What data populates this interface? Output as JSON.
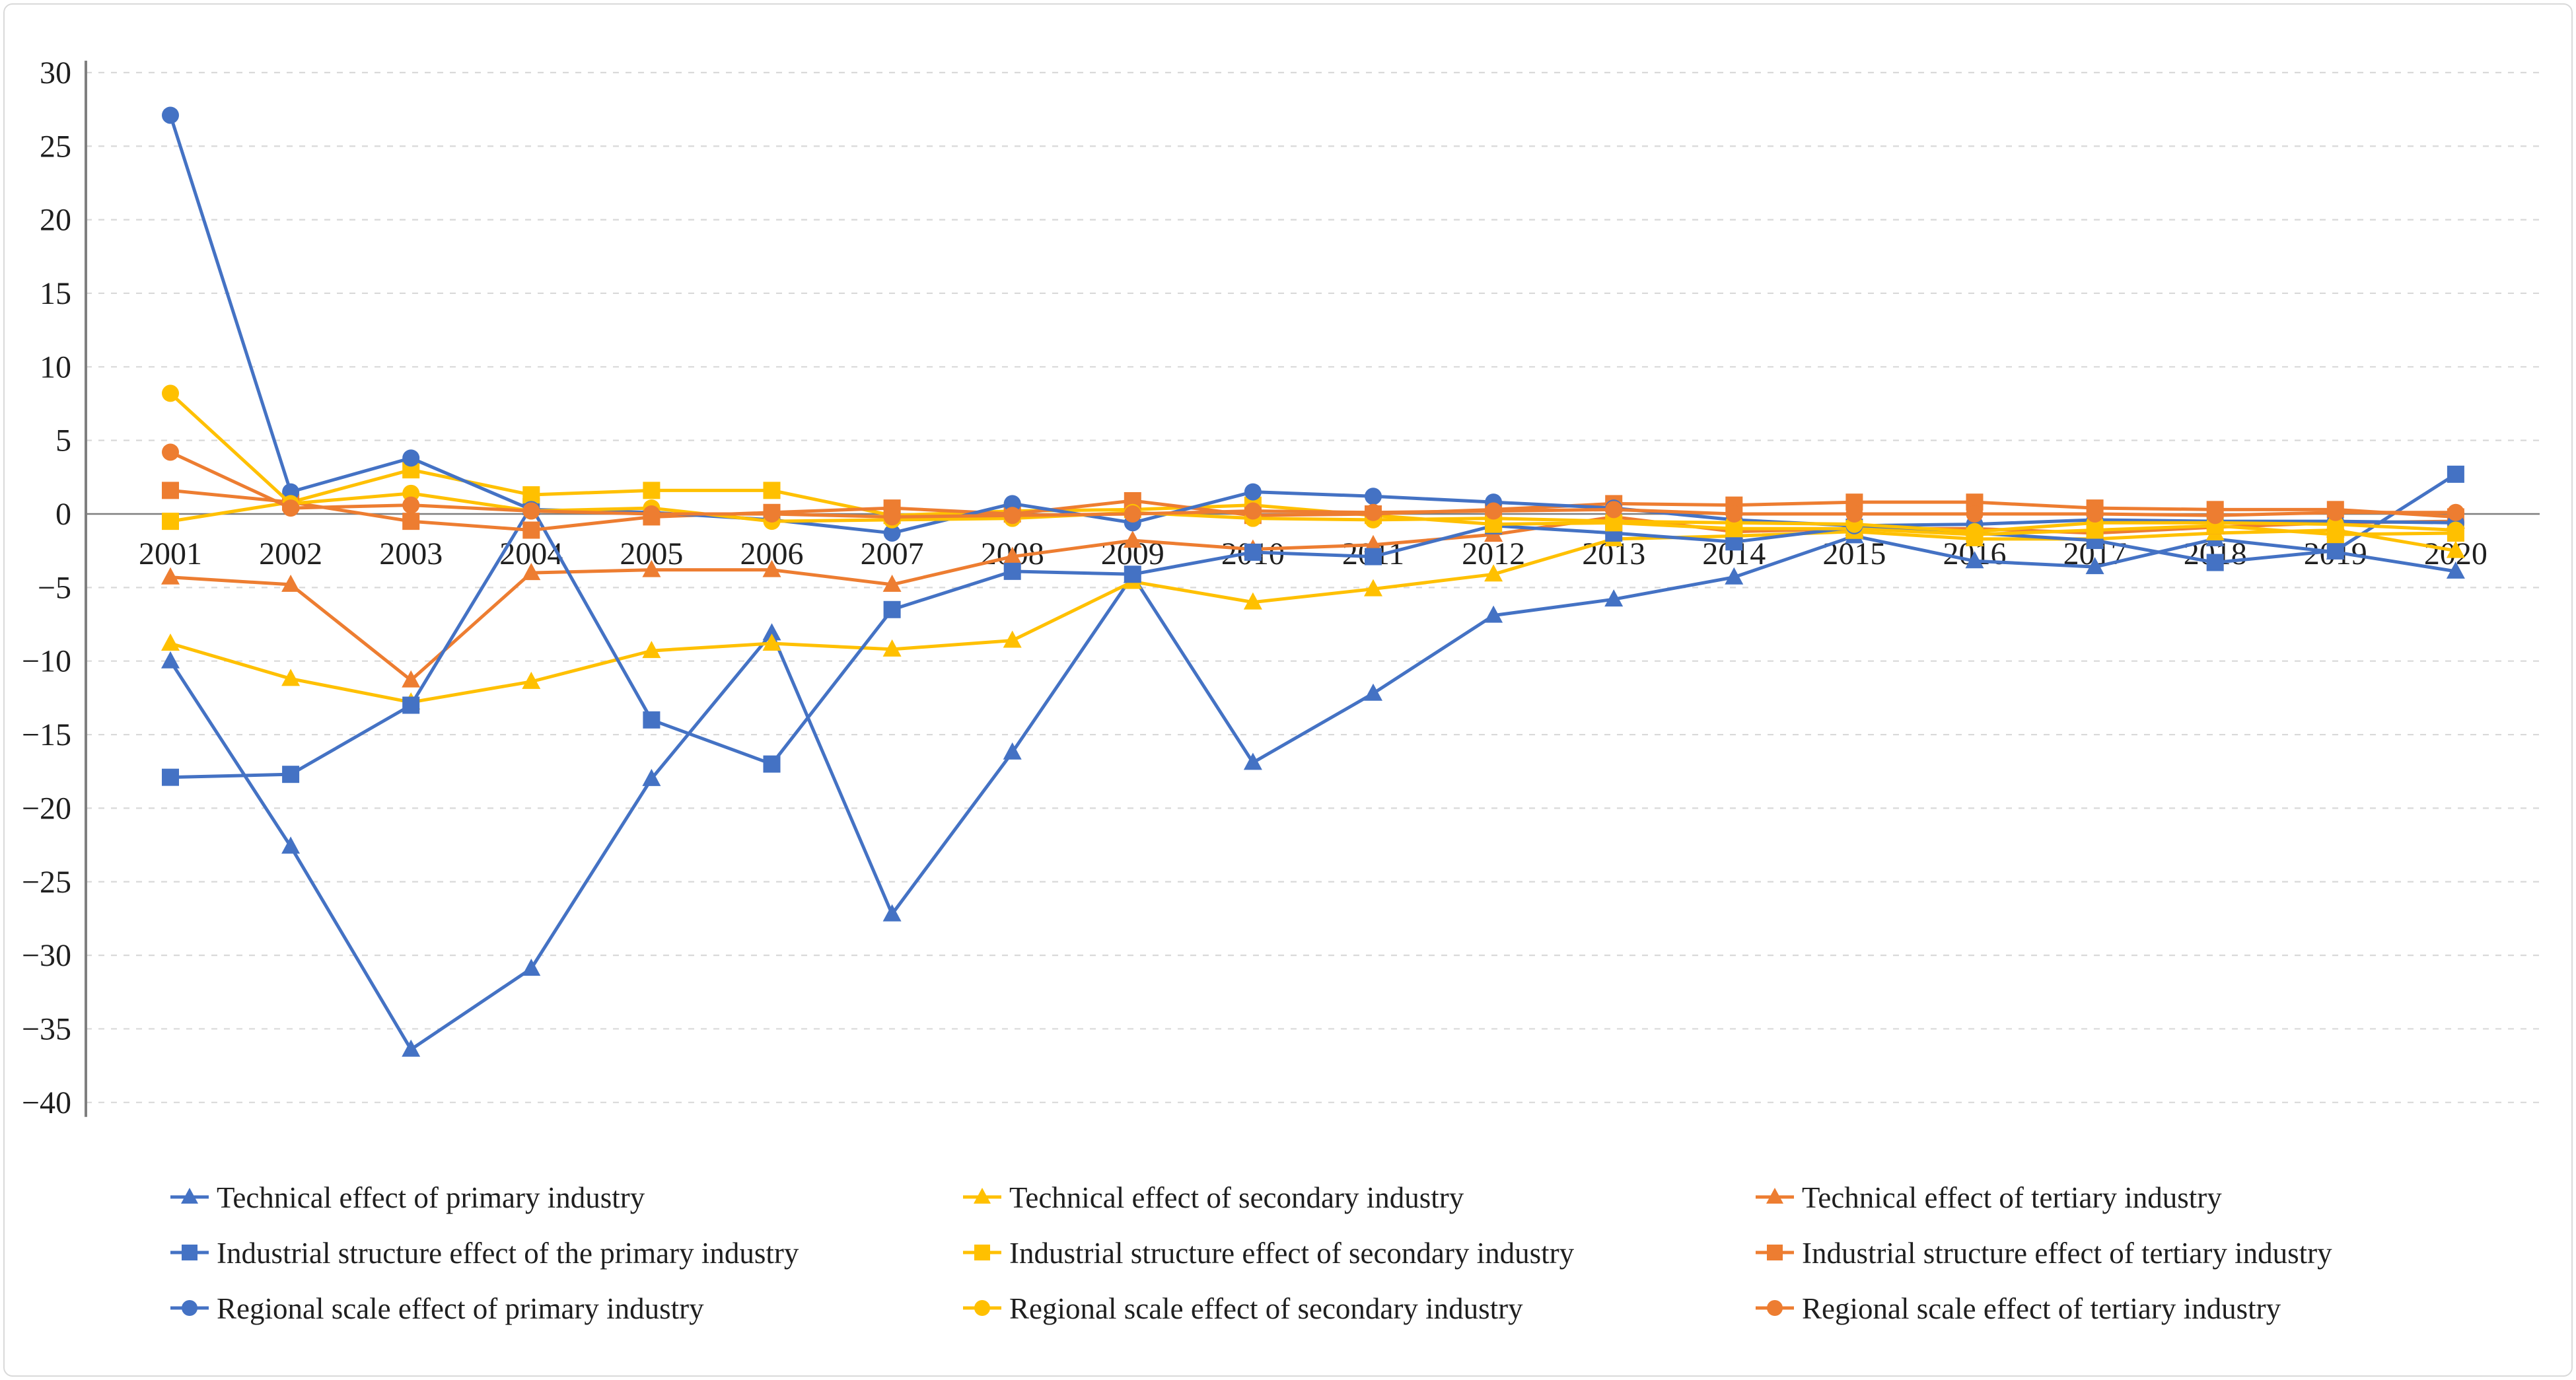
{
  "figure": {
    "background": "#ffffff",
    "border_color": "#d9d9d9"
  },
  "colors": {
    "primary_blue": "#4472C4",
    "secondary_yellow": "#FFC000",
    "tertiary_orange": "#ED7D31",
    "gridline": "#d9d9d9",
    "zero_axis": "#7f7f7f",
    "axis_spine": "#7f7f7f",
    "tick_text": "#1f1f1f"
  },
  "axes": {
    "y": {
      "min": -40,
      "max": 30,
      "tick_step": 5,
      "tick_labels": [
        "30",
        "25",
        "20",
        "15",
        "10",
        "5",
        "0",
        "−5",
        "−10",
        "−15",
        "−20",
        "−25",
        "−30",
        "−35",
        "−40"
      ]
    },
    "x": {
      "categories": [
        "2001",
        "2002",
        "2003",
        "2004",
        "2005",
        "2006",
        "2007",
        "2008",
        "2009",
        "2010",
        "2011",
        "2012",
        "2013",
        "2014",
        "2015",
        "2016",
        "2017",
        "2018",
        "2019",
        "2020"
      ]
    }
  },
  "chart_data": {
    "type": "line",
    "title": "",
    "xlabel": "",
    "ylabel": "",
    "ylim": [
      -40,
      30
    ],
    "grid": "horizontal dashed every 5",
    "legend_position": "bottom, 3 columns",
    "categories": [
      "2001",
      "2002",
      "2003",
      "2004",
      "2005",
      "2006",
      "2007",
      "2008",
      "2009",
      "2010",
      "2011",
      "2012",
      "2013",
      "2014",
      "2015",
      "2016",
      "2017",
      "2018",
      "2019",
      "2020"
    ],
    "series": [
      {
        "name": "Technical effect of primary industry",
        "color": "#4472C4",
        "marker": "triangle",
        "values": [
          -10.0,
          -22.6,
          -36.4,
          -30.9,
          -18.0,
          -8.1,
          -27.2,
          -16.2,
          -4.2,
          -16.9,
          -12.2,
          -6.9,
          -5.8,
          -4.3,
          -1.5,
          -3.2,
          -3.6,
          -1.7,
          -2.6,
          -3.9
        ]
      },
      {
        "name": "Technical effect of secondary industry",
        "color": "#FFC000",
        "marker": "triangle",
        "values": [
          -8.8,
          -11.2,
          -12.8,
          -11.4,
          -9.3,
          -8.8,
          -9.2,
          -8.6,
          -4.6,
          -6.0,
          -5.1,
          -4.1,
          -1.7,
          -1.5,
          -1.2,
          -1.7,
          -1.7,
          -1.3,
          -1.1,
          -2.5
        ]
      },
      {
        "name": "Technical effect of tertiary industry",
        "color": "#ED7D31",
        "marker": "triangle",
        "values": [
          -4.3,
          -4.8,
          -11.3,
          -4.0,
          -3.8,
          -3.8,
          -4.8,
          -2.9,
          -1.8,
          -2.4,
          -2.1,
          -1.4,
          -0.2,
          -1.2,
          -1.0,
          -1.0,
          -1.3,
          -0.9,
          -0.6,
          -0.5
        ]
      },
      {
        "name": "Industrial structure effect of the primary industry",
        "color": "#4472C4",
        "marker": "square",
        "values": [
          -17.9,
          -17.7,
          -13.0,
          0.5,
          -14.0,
          -17.0,
          -6.5,
          -3.9,
          -4.1,
          -2.6,
          -2.9,
          -0.8,
          -1.3,
          -1.9,
          -0.9,
          -1.3,
          -1.8,
          -3.3,
          -2.5,
          2.7
        ]
      },
      {
        "name": "Industrial structure effect of secondary industry",
        "color": "#FFC000",
        "marker": "square",
        "values": [
          -0.5,
          0.8,
          3.0,
          1.3,
          1.6,
          1.6,
          -0.1,
          0.2,
          0.3,
          0.6,
          -0.1,
          -0.7,
          -0.6,
          -1.0,
          -1.0,
          -1.4,
          -1.1,
          -0.8,
          -1.4,
          -1.3
        ]
      },
      {
        "name": "Industrial structure effect of tertiary industry",
        "color": "#ED7D31",
        "marker": "square",
        "values": [
          1.6,
          0.8,
          -0.5,
          -1.1,
          -0.2,
          0.1,
          0.4,
          0.0,
          0.9,
          -0.1,
          0.0,
          0.3,
          0.7,
          0.6,
          0.8,
          0.8,
          0.4,
          0.3,
          0.3,
          -0.2
        ]
      },
      {
        "name": "Regional scale effect of primary industry",
        "color": "#4472C4",
        "marker": "circle",
        "values": [
          27.1,
          1.5,
          3.8,
          0.3,
          0.1,
          -0.4,
          -1.3,
          0.7,
          -0.6,
          1.5,
          1.2,
          0.8,
          0.4,
          -0.4,
          -0.8,
          -0.7,
          -0.4,
          -0.5,
          -0.5,
          -0.6
        ]
      },
      {
        "name": "Regional scale effect of secondary industry",
        "color": "#FFC000",
        "marker": "circle",
        "values": [
          8.2,
          0.7,
          1.4,
          0.2,
          0.4,
          -0.5,
          -0.4,
          -0.3,
          0.1,
          -0.3,
          -0.4,
          -0.3,
          -0.5,
          -0.6,
          -0.7,
          -1.2,
          -0.6,
          -0.6,
          -0.7,
          -1.1
        ]
      },
      {
        "name": "Regional scale effect of tertiary industry",
        "color": "#ED7D31",
        "marker": "circle",
        "values": [
          4.2,
          0.4,
          0.6,
          0.2,
          0.0,
          0.0,
          -0.2,
          -0.1,
          0.0,
          0.2,
          0.1,
          0.2,
          0.3,
          0.0,
          0.0,
          0.0,
          0.0,
          -0.1,
          0.1,
          0.1
        ]
      }
    ]
  },
  "legend": {
    "items": [
      "Technical effect of primary industry",
      "Technical effect of secondary industry",
      "Technical effect of tertiary industry",
      "Industrial structure effect of the primary industry",
      "Industrial structure effect of secondary industry",
      "Industrial structure effect of tertiary industry",
      "Regional scale effect of primary industry",
      "Regional scale effect of secondary industry",
      "Regional scale effect of tertiary industry"
    ]
  }
}
